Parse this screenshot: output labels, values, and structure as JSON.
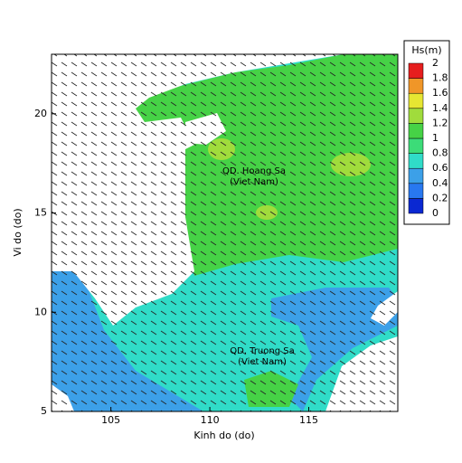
{
  "chart_data": {
    "type": "contour-map",
    "xlabel": "Kinh do (do)",
    "ylabel": "Vi do (do)",
    "xlim": [
      102,
      119.5
    ],
    "ylim": [
      5,
      23
    ],
    "xticks": [
      105,
      110,
      115
    ],
    "yticks": [
      5,
      10,
      15,
      20
    ],
    "colorbar": {
      "title": "Hs(m)",
      "ticks": [
        0,
        0.2,
        0.4,
        0.6,
        0.8,
        1,
        1.2,
        1.4,
        1.6,
        1.8,
        2
      ],
      "colors": [
        "#0a28d2",
        "#2878f0",
        "#3ca0e8",
        "#30dcc8",
        "#3cdc78",
        "#46d246",
        "#a0dc3c",
        "#e6e632",
        "#f09628",
        "#e61e1e"
      ]
    },
    "annotations": [
      "QD. Hoang Sa",
      "(Viet Nam)",
      "QD. Truong Sa",
      "(Viet Nam)"
    ]
  }
}
